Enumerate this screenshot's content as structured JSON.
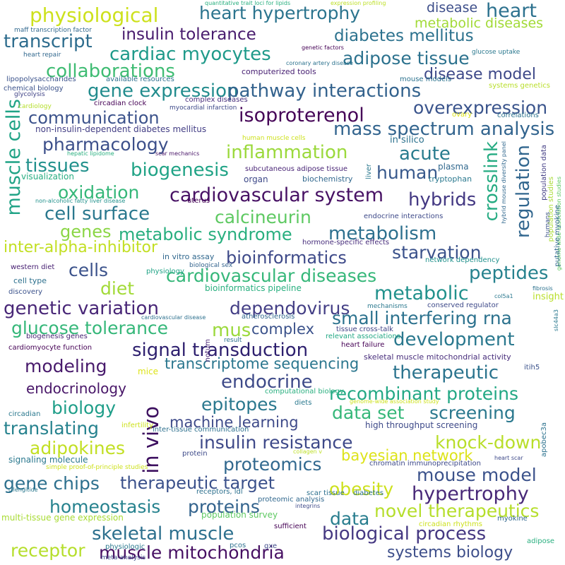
{
  "words": [
    {
      "text": "physiological",
      "color": "#cde11d"
    },
    {
      "text": "heart hypertrophy",
      "color": "#2b748e"
    },
    {
      "text": "heart",
      "color": "#2c718e"
    },
    {
      "text": "disease",
      "color": "#3d4e8a"
    },
    {
      "text": "metabolic diseases",
      "color": "#a2da37"
    },
    {
      "text": "insulin tolerance",
      "color": "#481c6e"
    },
    {
      "text": "diabetes mellitus",
      "color": "#2c728e"
    },
    {
      "text": "transcript",
      "color": "#2e6d8e"
    },
    {
      "text": "cardiac myocytes",
      "color": "#1f9a8a"
    },
    {
      "text": "adipose tissue",
      "color": "#2c728e"
    },
    {
      "text": "collaborations",
      "color": "#3fbc73"
    },
    {
      "text": "disease model",
      "color": "#3e4989"
    },
    {
      "text": "gene expression",
      "color": "#228c8d"
    },
    {
      "text": "pathway interactions",
      "color": "#33628d"
    },
    {
      "text": "overexpression",
      "color": "#3a548c"
    },
    {
      "text": "communication",
      "color": "#3b528b"
    },
    {
      "text": "isoproterenol",
      "color": "#450457"
    },
    {
      "text": "mass spectrum analysis",
      "color": "#32648e"
    },
    {
      "text": "muscle cells",
      "color": "#20a386"
    },
    {
      "text": "pharmacology",
      "color": "#3c4f8a"
    },
    {
      "text": "inflammation",
      "color": "#9bd93c"
    },
    {
      "text": "acute",
      "color": "#287c8e"
    },
    {
      "text": "crosslink",
      "color": "#25ab82"
    },
    {
      "text": "tissues",
      "color": "#21918c"
    },
    {
      "text": "biogenesis",
      "color": "#20a386"
    },
    {
      "text": "human",
      "color": "#38598c"
    },
    {
      "text": "regulation",
      "color": "#31668e"
    },
    {
      "text": "oxidation",
      "color": "#35b779"
    },
    {
      "text": "cardiovascular system",
      "color": "#471164"
    },
    {
      "text": "hybrids",
      "color": "#443983"
    },
    {
      "text": "cell surface",
      "color": "#2a788e"
    },
    {
      "text": "calcineurin",
      "color": "#5ec962"
    },
    {
      "text": "genes",
      "color": "#8bd646"
    },
    {
      "text": "metabolic syndrome",
      "color": "#29af7f"
    },
    {
      "text": "metabolism",
      "color": "#2d708e"
    },
    {
      "text": "inter-alpha-inhibitor",
      "color": "#c2df23"
    },
    {
      "text": "bioinformatics",
      "color": "#3e4a89"
    },
    {
      "text": "starvation",
      "color": "#3b528b"
    },
    {
      "text": "cells",
      "color": "#3b528b"
    },
    {
      "text": "diet",
      "color": "#a2da37"
    },
    {
      "text": "cardiovascular diseases",
      "color": "#35b779"
    },
    {
      "text": "peptides",
      "color": "#26828e"
    },
    {
      "text": "metabolic",
      "color": "#21918c"
    },
    {
      "text": "genetic variation",
      "color": "#482677"
    },
    {
      "text": "dependovirus",
      "color": "#433e85"
    },
    {
      "text": "small interfering rna",
      "color": "#2c728e"
    },
    {
      "text": "glucose tolerance",
      "color": "#35b779"
    },
    {
      "text": "mus",
      "color": "#9bd93c"
    },
    {
      "text": "complex",
      "color": "#3b528b"
    },
    {
      "text": "development",
      "color": "#2a788e"
    },
    {
      "text": "signal transduction",
      "color": "#2d1f6e"
    },
    {
      "text": "modeling",
      "color": "#481a6c"
    },
    {
      "text": "transcriptome sequencing",
      "color": "#2a768e"
    },
    {
      "text": "therapeutic",
      "color": "#2b748e"
    },
    {
      "text": "endocrine",
      "color": "#3e4a89"
    },
    {
      "text": "in vivo",
      "color": "#3c0f5f"
    },
    {
      "text": "endocrinology",
      "color": "#481668"
    },
    {
      "text": "recombinant proteins",
      "color": "#22a884"
    },
    {
      "text": "epitopes",
      "color": "#2a788e"
    },
    {
      "text": "biology",
      "color": "#1f9e89"
    },
    {
      "text": "data set",
      "color": "#35b779"
    },
    {
      "text": "screening",
      "color": "#2a788e"
    },
    {
      "text": "translating",
      "color": "#26828e"
    },
    {
      "text": "machine learning",
      "color": "#3e4a89"
    },
    {
      "text": "insulin resistance",
      "color": "#3e4989"
    },
    {
      "text": "knock-down",
      "color": "#b8de29"
    },
    {
      "text": "adipokines",
      "color": "#c2df23"
    },
    {
      "text": "bayesian network",
      "color": "#dde318"
    },
    {
      "text": "proteomics",
      "color": "#31688e"
    },
    {
      "text": "mouse model",
      "color": "#3b528b"
    },
    {
      "text": "gene chips",
      "color": "#2d708e"
    },
    {
      "text": "therapeutic target",
      "color": "#3b518b"
    },
    {
      "text": "hypertrophy",
      "color": "#482878"
    },
    {
      "text": "obesity",
      "color": "#cde11d"
    },
    {
      "text": "homeostasis",
      "color": "#26828e"
    },
    {
      "text": "proteins",
      "color": "#33638d"
    },
    {
      "text": "data",
      "color": "#287d8e"
    },
    {
      "text": "novel therapeutics",
      "color": "#b5de2b"
    },
    {
      "text": "skeletal muscle",
      "color": "#2d708e"
    },
    {
      "text": "biological process",
      "color": "#453882"
    },
    {
      "text": "receptor",
      "color": "#b5de2b"
    },
    {
      "text": "muscle mitochondria",
      "color": "#471063"
    },
    {
      "text": "systems biology",
      "color": "#3d4e8a"
    },
    {
      "text": "quantitative trait loci for lipids",
      "color": "#29af7f"
    },
    {
      "text": "expression profiling",
      "color": "#bddf26"
    },
    {
      "text": "maff transcription factor",
      "color": "#31688e"
    },
    {
      "text": "coronary artery disease",
      "color": "#2c728e"
    },
    {
      "text": "genetic factors",
      "color": "#440154"
    },
    {
      "text": "glucose uptake",
      "color": "#2a788e"
    },
    {
      "text": "heart repair",
      "color": "#31688e"
    },
    {
      "text": "lipopolysaccharides",
      "color": "#3b528b"
    },
    {
      "text": "available resources",
      "color": "#2d708e"
    },
    {
      "text": "chemical biology",
      "color": "#3b528b"
    },
    {
      "text": "glycolysis",
      "color": "#414487"
    },
    {
      "text": "mouse models",
      "color": "#2c728e"
    },
    {
      "text": "systems genetics",
      "color": "#b8de29"
    },
    {
      "text": "complex diseases",
      "color": "#472d7b"
    },
    {
      "text": "cardiology",
      "color": "#b5de2b"
    },
    {
      "text": "circadian clock",
      "color": "#440154"
    },
    {
      "text": "myocardial infarction",
      "color": "#3e4a89"
    },
    {
      "text": "ovary",
      "color": "#dde318"
    },
    {
      "text": "correlations",
      "color": "#2c728e"
    },
    {
      "text": "computerized tools",
      "color": "#482173"
    },
    {
      "text": "non-insulin-dependent diabetes mellitus",
      "color": "#433e85"
    },
    {
      "text": "in silico",
      "color": "#2c728e"
    },
    {
      "text": "hepatic lipidome",
      "color": "#29af7f"
    },
    {
      "text": "scar mechanics",
      "color": "#481467"
    },
    {
      "text": "human muscle cells",
      "color": "#cde11d"
    },
    {
      "text": "subcutaneous adipose tissue",
      "color": "#482475"
    },
    {
      "text": "plasma",
      "color": "#31688e"
    },
    {
      "text": "hybrid mouse diversity panel",
      "color": "#31688e"
    },
    {
      "text": "population data",
      "color": "#433e85"
    },
    {
      "text": "population studies",
      "color": "#a8db34"
    },
    {
      "text": "genome-wide association studies",
      "color": "#5ec962"
    },
    {
      "text": "humans",
      "color": "#3b528b"
    },
    {
      "text": "putative myokine",
      "color": "#31688e"
    },
    {
      "text": "liver",
      "color": "#2a788e"
    },
    {
      "text": "tryptophan",
      "color": "#2a788e"
    },
    {
      "text": "visualization",
      "color": "#27ad81"
    },
    {
      "text": "organ",
      "color": "#3e4a89"
    },
    {
      "text": "biochemistry",
      "color": "#31688e"
    },
    {
      "text": "non-alcoholic fatty liver disease",
      "color": "#21918c"
    },
    {
      "text": "uterus",
      "color": "#440154"
    },
    {
      "text": "endocrine interactions",
      "color": "#3e4a89"
    },
    {
      "text": "hormone-specific effects",
      "color": "#472d7b"
    },
    {
      "text": "in vitro assay",
      "color": "#31688e"
    },
    {
      "text": "western diet",
      "color": "#482173"
    },
    {
      "text": "biological sex",
      "color": "#33638d"
    },
    {
      "text": "network dependency",
      "color": "#21918c"
    },
    {
      "text": "cell type",
      "color": "#2d708e"
    },
    {
      "text": "physiology",
      "color": "#20a386"
    },
    {
      "text": "bioinformatics pipeline",
      "color": "#29af7f"
    },
    {
      "text": "discovery",
      "color": "#3b528b"
    },
    {
      "text": "fibrosis",
      "color": "#2c728e"
    },
    {
      "text": "insight",
      "color": "#b8de29"
    },
    {
      "text": "col5a1",
      "color": "#2a788e"
    },
    {
      "text": "mechanisms",
      "color": "#2a788e"
    },
    {
      "text": "conserved regulator",
      "color": "#3e4a89"
    },
    {
      "text": "slc44a3",
      "color": "#2a788e"
    },
    {
      "text": "atherosclerosis",
      "color": "#31688e"
    },
    {
      "text": "cardiovascular disease",
      "color": "#2d708e"
    },
    {
      "text": "biogenesis genes",
      "color": "#482475"
    },
    {
      "text": "tissue cross-talk",
      "color": "#414487"
    },
    {
      "text": "relevant associations",
      "color": "#22a884"
    },
    {
      "text": "cardiomyocyte function",
      "color": "#440154"
    },
    {
      "text": "notum",
      "color": "#482475"
    },
    {
      "text": "result",
      "color": "#2d708e"
    },
    {
      "text": "heart failure",
      "color": "#440154"
    },
    {
      "text": "skeletal muscle mitochondrial activity",
      "color": "#472d7b"
    },
    {
      "text": "itih5",
      "color": "#3b528b"
    },
    {
      "text": "mice",
      "color": "#dde318"
    },
    {
      "text": "computational biology",
      "color": "#29af7f"
    },
    {
      "text": "diets",
      "color": "#2a788e"
    },
    {
      "text": "genome-wide association study",
      "color": "#cde11d"
    },
    {
      "text": "circadian",
      "color": "#2a788e"
    },
    {
      "text": "infertility",
      "color": "#cde11d"
    },
    {
      "text": "inter-tissue communication",
      "color": "#2d708e"
    },
    {
      "text": "high throughput screening",
      "color": "#3e4a89"
    },
    {
      "text": "apobec3a",
      "color": "#2c728e"
    },
    {
      "text": "signaling molecule",
      "color": "#2a788e"
    },
    {
      "text": "protein",
      "color": "#3e4a89"
    },
    {
      "text": "collagen v",
      "color": "#bddf26"
    },
    {
      "text": "chromatin immunoprecipitation",
      "color": "#3e4a89"
    },
    {
      "text": "heart scar",
      "color": "#3e4a89"
    },
    {
      "text": "simple proof-of-principle studies",
      "color": "#cde11d"
    },
    {
      "text": "cilengitide",
      "color": "#2a788e"
    },
    {
      "text": "receptors, ldl",
      "color": "#2d708e"
    },
    {
      "text": "scar tissue",
      "color": "#2d708e"
    },
    {
      "text": "diabetes",
      "color": "#2c728e"
    },
    {
      "text": "proteomic analysis",
      "color": "#31688e"
    },
    {
      "text": "integrins",
      "color": "#3e4a89"
    },
    {
      "text": "multi-tissue gene expression",
      "color": "#a8db34"
    },
    {
      "text": "population survey",
      "color": "#5ec962"
    },
    {
      "text": "sufficient",
      "color": "#440154"
    },
    {
      "text": "circadian rhythms",
      "color": "#cde11d"
    },
    {
      "text": "myokine",
      "color": "#31688e"
    },
    {
      "text": "physiologic",
      "color": "#2a788e"
    },
    {
      "text": "pcos",
      "color": "#2d708e"
    },
    {
      "text": "gxe",
      "color": "#3e4a89"
    },
    {
      "text": "adipose",
      "color": "#29af7f"
    },
    {
      "text": "meta-analysis",
      "color": "#3e4a89"
    }
  ]
}
